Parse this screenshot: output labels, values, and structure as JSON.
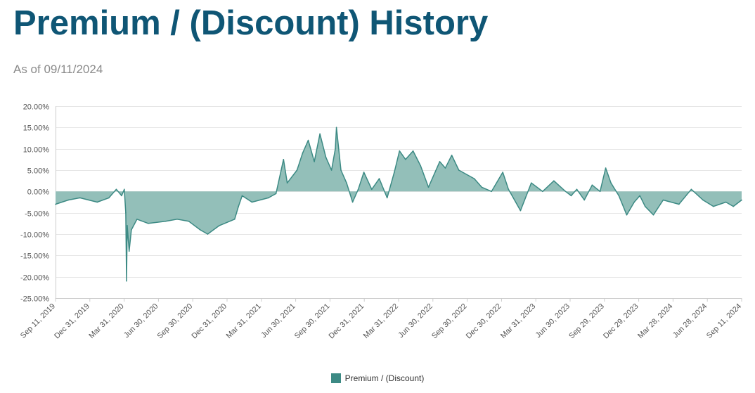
{
  "header": {
    "title": "Premium / (Discount) History",
    "subtitle": "As of 09/11/2024"
  },
  "colors": {
    "title": "#0f5675",
    "series_line": "#3c8a84",
    "series_fill": "#93bfb9",
    "legend_swatch": "#3c8a84",
    "grid": "#e6e6e6"
  },
  "chart_data": {
    "type": "area",
    "legend_position": "bottom-center",
    "grid": true,
    "ylim": [
      -25,
      20
    ],
    "y_ticks": [
      20,
      15,
      10,
      5,
      0,
      -5,
      -10,
      -15,
      -20,
      -25
    ],
    "y_tick_labels": [
      "20.00%",
      "15.00%",
      "10.00%",
      "5.00%",
      "0.00%",
      "-5.00%",
      "-10.00%",
      "-15.00%",
      "-20.00%",
      "-25.00%"
    ],
    "x_tick_labels": [
      "Sep 11, 2019",
      "Dec 31, 2019",
      "Mar 31, 2020",
      "Jun 30, 2020",
      "Sep 30, 2020",
      "Dec 31, 2020",
      "Mar 31, 2021",
      "Jun 30, 2021",
      "Sep 30, 2021",
      "Dec 31, 2021",
      "Mar 31, 2022",
      "Jun 30, 2022",
      "Sep 30, 2022",
      "Dec 30, 2022",
      "Mar 31, 2023",
      "Jun 30, 2023",
      "Sep 29, 2023",
      "Dec 29, 2023",
      "Mar 28, 2024",
      "Jun 28, 2024",
      "Sep 11, 2024"
    ],
    "series": [
      {
        "name": "Premium / (Discount)",
        "x": [
          "2019-09-11",
          "2019-10-15",
          "2019-11-15",
          "2019-12-31",
          "2020-01-31",
          "2020-02-20",
          "2020-03-05",
          "2020-03-12",
          "2020-03-16",
          "2020-03-18",
          "2020-03-20",
          "2020-03-25",
          "2020-03-31",
          "2020-04-15",
          "2020-05-15",
          "2020-06-30",
          "2020-07-31",
          "2020-08-31",
          "2020-09-30",
          "2020-10-20",
          "2020-11-20",
          "2020-12-31",
          "2021-01-10",
          "2021-01-20",
          "2021-02-15",
          "2021-03-31",
          "2021-04-20",
          "2021-05-10",
          "2021-05-20",
          "2021-06-15",
          "2021-06-30",
          "2021-07-15",
          "2021-07-31",
          "2021-08-15",
          "2021-08-31",
          "2021-09-15",
          "2021-09-25",
          "2021-09-28",
          "2021-10-10",
          "2021-10-25",
          "2021-11-10",
          "2021-11-25",
          "2021-12-10",
          "2021-12-31",
          "2022-01-20",
          "2022-02-10",
          "2022-03-01",
          "2022-03-15",
          "2022-03-31",
          "2022-04-20",
          "2022-05-10",
          "2022-05-31",
          "2022-06-30",
          "2022-07-15",
          "2022-08-01",
          "2022-08-20",
          "2022-09-30",
          "2022-10-20",
          "2022-11-15",
          "2022-12-15",
          "2022-12-30",
          "2023-01-31",
          "2023-03-01",
          "2023-03-31",
          "2023-04-30",
          "2023-05-31",
          "2023-06-15",
          "2023-06-30",
          "2023-07-20",
          "2023-08-10",
          "2023-08-31",
          "2023-09-15",
          "2023-09-29",
          "2023-10-20",
          "2023-11-10",
          "2023-11-30",
          "2023-12-15",
          "2023-12-29",
          "2024-01-20",
          "2024-02-15",
          "2024-03-28",
          "2024-04-30",
          "2024-05-31",
          "2024-06-28",
          "2024-07-31",
          "2024-08-20",
          "2024-09-11"
        ],
        "values": [
          -3.0,
          -2.0,
          -1.5,
          -2.5,
          -1.5,
          0.5,
          -1.0,
          0.5,
          -5.0,
          -21.0,
          -8.0,
          -14.0,
          -9.0,
          -6.5,
          -7.5,
          -7.0,
          -6.5,
          -7.0,
          -9.0,
          -10.0,
          -8.0,
          -6.5,
          -3.5,
          -1.0,
          -2.5,
          -1.5,
          -0.5,
          7.5,
          2.0,
          5.0,
          9.0,
          12.0,
          7.0,
          13.5,
          8.0,
          5.0,
          10.0,
          15.0,
          5.0,
          2.0,
          -2.5,
          0.5,
          4.5,
          0.5,
          3.0,
          -1.5,
          4.5,
          9.5,
          7.5,
          9.5,
          6.0,
          1.0,
          7.0,
          5.5,
          8.5,
          5.0,
          3.0,
          1.0,
          0.0,
          4.5,
          0.5,
          -4.5,
          2.0,
          0.0,
          2.5,
          0.0,
          -1.0,
          0.5,
          -2.0,
          1.5,
          0.0,
          5.5,
          2.0,
          -1.0,
          -5.5,
          -2.5,
          -1.0,
          -3.5,
          -5.5,
          -2.0,
          -3.0,
          0.5,
          -2.0,
          -3.5,
          -2.5,
          -3.5,
          -2.0
        ]
      }
    ]
  }
}
